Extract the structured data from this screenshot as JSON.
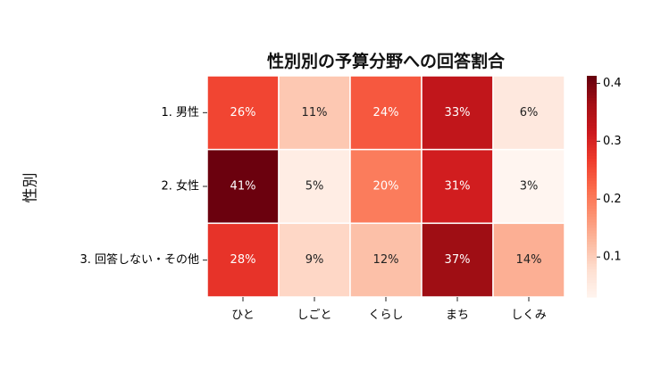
{
  "chart_data": {
    "type": "heatmap",
    "title": "性別別の予算分野への回答割合",
    "ylabel": "性別",
    "xlabel": "",
    "x_categories": [
      "ひと",
      "しごと",
      "くらし",
      "まち",
      "しくみ"
    ],
    "y_categories": [
      "1. 男性",
      "2. 女性",
      "3. 回答しない・その他"
    ],
    "values": [
      [
        0.26,
        0.11,
        0.24,
        0.33,
        0.06
      ],
      [
        0.41,
        0.05,
        0.2,
        0.31,
        0.03
      ],
      [
        0.28,
        0.09,
        0.12,
        0.37,
        0.14
      ]
    ],
    "labels": [
      [
        "26%",
        "11%",
        "24%",
        "33%",
        "6%"
      ],
      [
        "41%",
        "5%",
        "20%",
        "31%",
        "3%"
      ],
      [
        "28%",
        "9%",
        "12%",
        "37%",
        "14%"
      ]
    ],
    "colormap": "Reds",
    "colorbar": {
      "range": [
        0.031,
        0.413
      ],
      "ticks": [
        0.1,
        0.2,
        0.3,
        0.4
      ],
      "tick_labels": [
        "0.1",
        "0.2",
        "0.3",
        "0.4"
      ]
    },
    "colormap_stops": [
      "#fff5f0",
      "#fee0d2",
      "#fcbba1",
      "#fc9272",
      "#fb6a4a",
      "#ef3b2c",
      "#cb181d",
      "#a50f15",
      "#67000d"
    ]
  }
}
